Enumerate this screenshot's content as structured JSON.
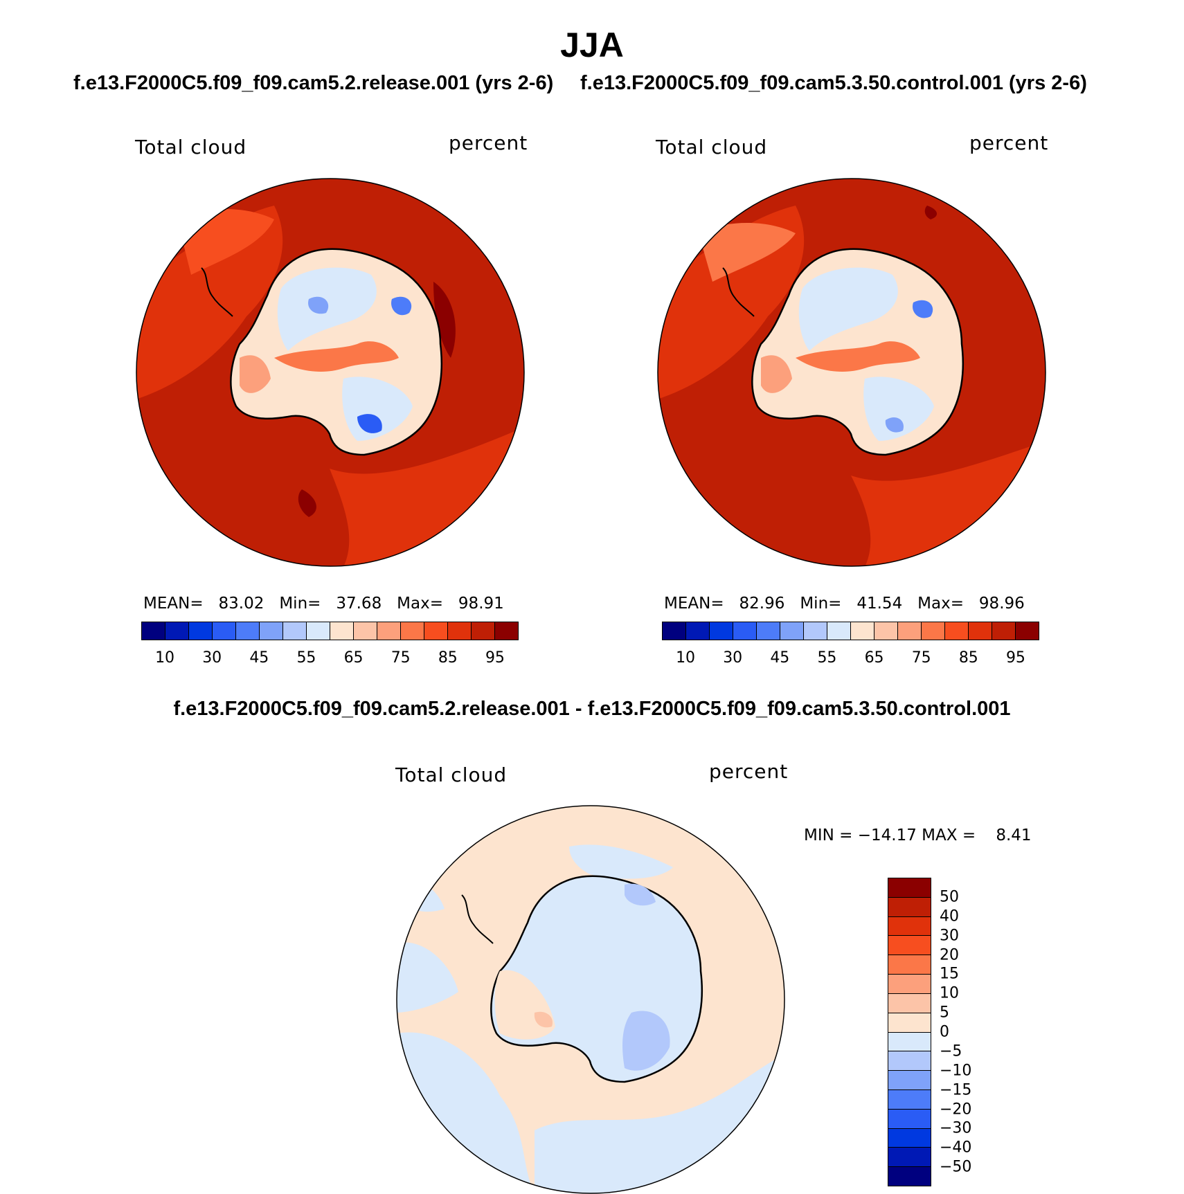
{
  "title": "JJA",
  "panels": [
    {
      "case": "f.e13.F2000C5.f09_f09.cam5.2.release.001 (yrs 2-6)",
      "variable": "Total cloud",
      "units": "percent",
      "mean_label": "MEAN=",
      "mean": "83.02",
      "min_label": "Min=",
      "min": "37.68",
      "max_label": "Max=",
      "max": "98.91"
    },
    {
      "case": "f.e13.F2000C5.f09_f09.cam5.3.50.control.001 (yrs 2-6)",
      "variable": "Total cloud",
      "units": "percent",
      "mean_label": "MEAN=",
      "mean": "82.96",
      "min_label": "Min=",
      "min": "41.54",
      "max_label": "Max=",
      "max": "98.96"
    }
  ],
  "abs_colorbar": {
    "colors": [
      "#00007f",
      "#0019b5",
      "#0039e0",
      "#2a5cf5",
      "#4d7cf9",
      "#7fa2f9",
      "#b2c8fb",
      "#d9e9fb",
      "#fde4cf",
      "#fcc4a8",
      "#fca07c",
      "#fb7748",
      "#f74e1f",
      "#e0320b",
      "#bf1f05",
      "#8b0000"
    ],
    "ticks": [
      "10",
      "30",
      "45",
      "55",
      "65",
      "75",
      "85",
      "95"
    ]
  },
  "diff": {
    "title": "f.e13.F2000C5.f09_f09.cam5.2.release.001 - f.e13.F2000C5.f09_f09.cam5.3.50.control.001",
    "variable": "Total cloud",
    "units": "percent",
    "min_label": "MIN =",
    "min": "−14.17",
    "max_label": "MAX =",
    "max": "8.41",
    "colors": [
      "#8b0000",
      "#bf1f05",
      "#e0320b",
      "#f74e1f",
      "#fb7748",
      "#fca07c",
      "#fcc4a8",
      "#fde4cf",
      "#d9e9fb",
      "#b2c8fb",
      "#7fa2f9",
      "#4d7cf9",
      "#2a5cf5",
      "#0039e0",
      "#0019b5",
      "#00007f"
    ],
    "ticks": [
      "50",
      "40",
      "30",
      "20",
      "15",
      "10",
      "5",
      "0",
      "−5",
      "−10",
      "−15",
      "−20",
      "−30",
      "−40",
      "−50"
    ]
  }
}
